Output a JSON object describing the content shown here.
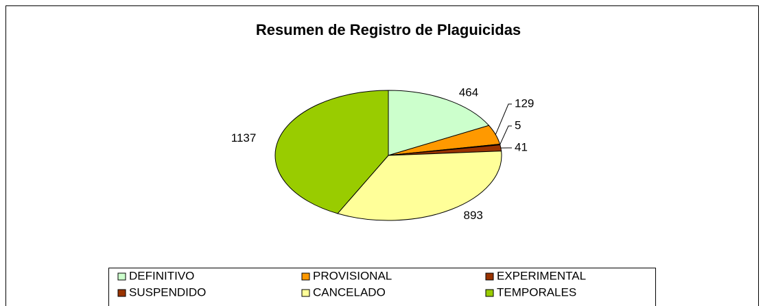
{
  "chart_data": {
    "type": "pie",
    "title": "Resumen de Registro de Plaguicidas",
    "categories": [
      "DEFINITIVO",
      "PROVISIONAL",
      "EXPERIMENTAL",
      "SUSPENDIDO",
      "CANCELADO",
      "TEMPORALES"
    ],
    "values": [
      464,
      129,
      5,
      41,
      893,
      1137
    ],
    "colors": [
      "#ccffcc",
      "#ff9900",
      "#993300",
      "#993300",
      "#ffff99",
      "#99cc00"
    ],
    "legend": "bottom"
  }
}
